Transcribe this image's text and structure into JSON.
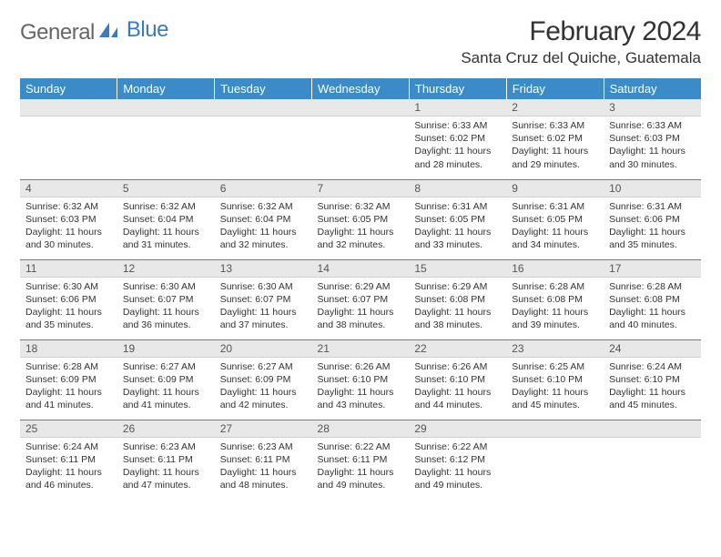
{
  "logo": {
    "word1": "General",
    "word2": "Blue"
  },
  "title": "February 2024",
  "location": "Santa Cruz del Quiche, Guatemala",
  "colors": {
    "header_bg": "#3b8bc9",
    "header_fg": "#ffffff",
    "daynum_bg": "#e8e8e8",
    "row_divider": "#3b8bc9",
    "logo_accent": "#3a7bbf"
  },
  "day_headers": [
    "Sunday",
    "Monday",
    "Tuesday",
    "Wednesday",
    "Thursday",
    "Friday",
    "Saturday"
  ],
  "weeks": [
    [
      {
        "n": "",
        "sr": "",
        "ss": "",
        "dl": ""
      },
      {
        "n": "",
        "sr": "",
        "ss": "",
        "dl": ""
      },
      {
        "n": "",
        "sr": "",
        "ss": "",
        "dl": ""
      },
      {
        "n": "",
        "sr": "",
        "ss": "",
        "dl": ""
      },
      {
        "n": "1",
        "sr": "Sunrise: 6:33 AM",
        "ss": "Sunset: 6:02 PM",
        "dl": "Daylight: 11 hours and 28 minutes."
      },
      {
        "n": "2",
        "sr": "Sunrise: 6:33 AM",
        "ss": "Sunset: 6:02 PM",
        "dl": "Daylight: 11 hours and 29 minutes."
      },
      {
        "n": "3",
        "sr": "Sunrise: 6:33 AM",
        "ss": "Sunset: 6:03 PM",
        "dl": "Daylight: 11 hours and 30 minutes."
      }
    ],
    [
      {
        "n": "4",
        "sr": "Sunrise: 6:32 AM",
        "ss": "Sunset: 6:03 PM",
        "dl": "Daylight: 11 hours and 30 minutes."
      },
      {
        "n": "5",
        "sr": "Sunrise: 6:32 AM",
        "ss": "Sunset: 6:04 PM",
        "dl": "Daylight: 11 hours and 31 minutes."
      },
      {
        "n": "6",
        "sr": "Sunrise: 6:32 AM",
        "ss": "Sunset: 6:04 PM",
        "dl": "Daylight: 11 hours and 32 minutes."
      },
      {
        "n": "7",
        "sr": "Sunrise: 6:32 AM",
        "ss": "Sunset: 6:05 PM",
        "dl": "Daylight: 11 hours and 32 minutes."
      },
      {
        "n": "8",
        "sr": "Sunrise: 6:31 AM",
        "ss": "Sunset: 6:05 PM",
        "dl": "Daylight: 11 hours and 33 minutes."
      },
      {
        "n": "9",
        "sr": "Sunrise: 6:31 AM",
        "ss": "Sunset: 6:05 PM",
        "dl": "Daylight: 11 hours and 34 minutes."
      },
      {
        "n": "10",
        "sr": "Sunrise: 6:31 AM",
        "ss": "Sunset: 6:06 PM",
        "dl": "Daylight: 11 hours and 35 minutes."
      }
    ],
    [
      {
        "n": "11",
        "sr": "Sunrise: 6:30 AM",
        "ss": "Sunset: 6:06 PM",
        "dl": "Daylight: 11 hours and 35 minutes."
      },
      {
        "n": "12",
        "sr": "Sunrise: 6:30 AM",
        "ss": "Sunset: 6:07 PM",
        "dl": "Daylight: 11 hours and 36 minutes."
      },
      {
        "n": "13",
        "sr": "Sunrise: 6:30 AM",
        "ss": "Sunset: 6:07 PM",
        "dl": "Daylight: 11 hours and 37 minutes."
      },
      {
        "n": "14",
        "sr": "Sunrise: 6:29 AM",
        "ss": "Sunset: 6:07 PM",
        "dl": "Daylight: 11 hours and 38 minutes."
      },
      {
        "n": "15",
        "sr": "Sunrise: 6:29 AM",
        "ss": "Sunset: 6:08 PM",
        "dl": "Daylight: 11 hours and 38 minutes."
      },
      {
        "n": "16",
        "sr": "Sunrise: 6:28 AM",
        "ss": "Sunset: 6:08 PM",
        "dl": "Daylight: 11 hours and 39 minutes."
      },
      {
        "n": "17",
        "sr": "Sunrise: 6:28 AM",
        "ss": "Sunset: 6:08 PM",
        "dl": "Daylight: 11 hours and 40 minutes."
      }
    ],
    [
      {
        "n": "18",
        "sr": "Sunrise: 6:28 AM",
        "ss": "Sunset: 6:09 PM",
        "dl": "Daylight: 11 hours and 41 minutes."
      },
      {
        "n": "19",
        "sr": "Sunrise: 6:27 AM",
        "ss": "Sunset: 6:09 PM",
        "dl": "Daylight: 11 hours and 41 minutes."
      },
      {
        "n": "20",
        "sr": "Sunrise: 6:27 AM",
        "ss": "Sunset: 6:09 PM",
        "dl": "Daylight: 11 hours and 42 minutes."
      },
      {
        "n": "21",
        "sr": "Sunrise: 6:26 AM",
        "ss": "Sunset: 6:10 PM",
        "dl": "Daylight: 11 hours and 43 minutes."
      },
      {
        "n": "22",
        "sr": "Sunrise: 6:26 AM",
        "ss": "Sunset: 6:10 PM",
        "dl": "Daylight: 11 hours and 44 minutes."
      },
      {
        "n": "23",
        "sr": "Sunrise: 6:25 AM",
        "ss": "Sunset: 6:10 PM",
        "dl": "Daylight: 11 hours and 45 minutes."
      },
      {
        "n": "24",
        "sr": "Sunrise: 6:24 AM",
        "ss": "Sunset: 6:10 PM",
        "dl": "Daylight: 11 hours and 45 minutes."
      }
    ],
    [
      {
        "n": "25",
        "sr": "Sunrise: 6:24 AM",
        "ss": "Sunset: 6:11 PM",
        "dl": "Daylight: 11 hours and 46 minutes."
      },
      {
        "n": "26",
        "sr": "Sunrise: 6:23 AM",
        "ss": "Sunset: 6:11 PM",
        "dl": "Daylight: 11 hours and 47 minutes."
      },
      {
        "n": "27",
        "sr": "Sunrise: 6:23 AM",
        "ss": "Sunset: 6:11 PM",
        "dl": "Daylight: 11 hours and 48 minutes."
      },
      {
        "n": "28",
        "sr": "Sunrise: 6:22 AM",
        "ss": "Sunset: 6:11 PM",
        "dl": "Daylight: 11 hours and 49 minutes."
      },
      {
        "n": "29",
        "sr": "Sunrise: 6:22 AM",
        "ss": "Sunset: 6:12 PM",
        "dl": "Daylight: 11 hours and 49 minutes."
      },
      {
        "n": "",
        "sr": "",
        "ss": "",
        "dl": ""
      },
      {
        "n": "",
        "sr": "",
        "ss": "",
        "dl": ""
      }
    ]
  ]
}
